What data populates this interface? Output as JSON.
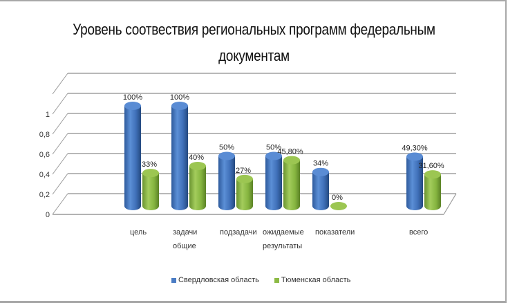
{
  "chart_data": {
    "type": "bar",
    "style": "3d-cylinder",
    "title": "Уровень соотвествия региональных программ федеральным документам",
    "xlabel": "",
    "ylabel": "",
    "ylim": [
      0,
      1
    ],
    "yticks": [
      "0",
      "0,2",
      "0,4",
      "0,6",
      "0,8",
      "1"
    ],
    "grid": true,
    "legend_position": "bottom",
    "categories": [
      "цель",
      "задачи общие",
      "подзадачи",
      "ожидаемые результаты",
      "показатели",
      "",
      "всего"
    ],
    "series": [
      {
        "name": "Свердловская область",
        "color": "#4a7cc4",
        "values": [
          1.0,
          1.0,
          0.5,
          0.5,
          0.34,
          null,
          0.493
        ],
        "labels": [
          "100%",
          "100%",
          "50%",
          "50%",
          "34%",
          "",
          "49,30%"
        ]
      },
      {
        "name": "Тюменская область",
        "color": "#8cba44",
        "values": [
          0.33,
          0.4,
          0.27,
          0.458,
          0.0,
          null,
          0.316
        ],
        "labels": [
          "33%",
          "40%",
          "27%",
          "45,80%",
          "0%",
          "",
          "31,60%"
        ]
      }
    ]
  },
  "title": {
    "line1": "Уровень соотвествия региональных программ федеральным",
    "line2": "документам"
  },
  "legend": {
    "items": [
      {
        "label": "Свердловская область",
        "color": "#4a7cc4"
      },
      {
        "label": "Тюменская область",
        "color": "#8cba44"
      }
    ]
  }
}
